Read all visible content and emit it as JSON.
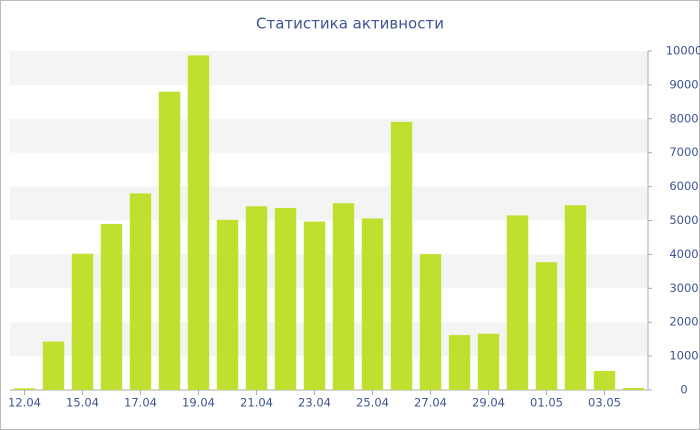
{
  "chart_data": {
    "type": "bar",
    "title": "Статистика активности",
    "categories": [
      "12.04",
      null,
      "15.04",
      null,
      "17.04",
      null,
      "19.04",
      null,
      "21.04",
      null,
      "23.04",
      null,
      "25.04",
      null,
      "27.04",
      null,
      "29.04",
      null,
      "01.05",
      null,
      "03.05",
      null
    ],
    "values": [
      50,
      1430,
      4020,
      4900,
      5800,
      8800,
      9870,
      5020,
      5420,
      5370,
      4970,
      5510,
      5060,
      7910,
      4010,
      1620,
      1660,
      5150,
      3770,
      5450,
      560,
      60
    ],
    "color": "#bfe02e",
    "ylim": [
      0,
      10000
    ],
    "yticks": [
      0,
      1000,
      2000,
      3000,
      4000,
      5000,
      6000,
      7000,
      8000,
      9000,
      10000
    ],
    "grid": true
  }
}
